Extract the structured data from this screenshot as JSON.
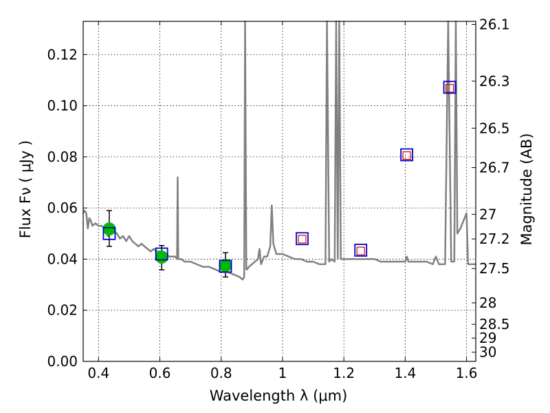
{
  "chart_data": {
    "type": "scatter",
    "xlabel": "Wavelength  λ (μm)",
    "ylabel": "Flux  Fν  ( μJy )",
    "y2label": "Magnitude (AB)",
    "xlim": [
      0.35,
      1.63
    ],
    "ylim": [
      0.0,
      0.133
    ],
    "grid": true,
    "x_ticks": [
      0.4,
      0.6,
      0.8,
      1.0,
      1.2,
      1.4,
      1.6
    ],
    "x_tick_labels": [
      "0.4",
      "0.6",
      "0.8",
      "1",
      "1.2",
      "1.4",
      "1.6"
    ],
    "y_ticks": [
      0.0,
      0.02,
      0.04,
      0.06,
      0.08,
      0.1,
      0.12
    ],
    "y_tick_labels": [
      "0.00",
      "0.02",
      "0.04",
      "0.06",
      "0.08",
      "0.10",
      "0.12"
    ],
    "mag_ticks": [
      {
        "label": "26.1",
        "flux": 0.1318
      },
      {
        "label": "26.3",
        "flux": 0.1096
      },
      {
        "label": "26.5",
        "flux": 0.0912
      },
      {
        "label": "26.7",
        "flux": 0.0758
      },
      {
        "label": "27",
        "flux": 0.0575
      },
      {
        "label": "27.2",
        "flux": 0.0479
      },
      {
        "label": "27.5",
        "flux": 0.0363
      },
      {
        "label": "28",
        "flux": 0.0229
      },
      {
        "label": "28.5",
        "flux": 0.0145
      },
      {
        "label": "29",
        "flux": 0.0091
      },
      {
        "label": "30",
        "flux": 0.0036
      }
    ],
    "series": [
      {
        "type": "line",
        "color": "#808080",
        "points": [
          [
            0.35,
            0.058
          ],
          [
            0.355,
            0.059
          ],
          [
            0.36,
            0.058
          ],
          [
            0.365,
            0.052
          ],
          [
            0.37,
            0.056
          ],
          [
            0.375,
            0.055
          ],
          [
            0.38,
            0.053
          ],
          [
            0.39,
            0.054
          ],
          [
            0.4,
            0.053
          ],
          [
            0.41,
            0.053
          ],
          [
            0.42,
            0.052
          ],
          [
            0.43,
            0.049
          ],
          [
            0.44,
            0.05
          ],
          [
            0.45,
            0.051
          ],
          [
            0.46,
            0.05
          ],
          [
            0.47,
            0.048
          ],
          [
            0.48,
            0.049
          ],
          [
            0.49,
            0.047
          ],
          [
            0.5,
            0.049
          ],
          [
            0.51,
            0.047
          ],
          [
            0.52,
            0.046
          ],
          [
            0.53,
            0.045
          ],
          [
            0.54,
            0.046
          ],
          [
            0.55,
            0.045
          ],
          [
            0.56,
            0.044
          ],
          [
            0.57,
            0.043
          ],
          [
            0.58,
            0.044
          ],
          [
            0.59,
            0.043
          ],
          [
            0.6,
            0.043
          ],
          [
            0.61,
            0.042
          ],
          [
            0.62,
            0.042
          ],
          [
            0.63,
            0.041
          ],
          [
            0.64,
            0.041
          ],
          [
            0.65,
            0.041
          ],
          [
            0.656,
            0.04
          ],
          [
            0.658,
            0.072
          ],
          [
            0.66,
            0.04
          ],
          [
            0.67,
            0.04
          ],
          [
            0.68,
            0.039
          ],
          [
            0.7,
            0.039
          ],
          [
            0.72,
            0.038
          ],
          [
            0.74,
            0.037
          ],
          [
            0.76,
            0.037
          ],
          [
            0.78,
            0.036
          ],
          [
            0.8,
            0.035
          ],
          [
            0.82,
            0.035
          ],
          [
            0.84,
            0.034
          ],
          [
            0.86,
            0.033
          ],
          [
            0.87,
            0.032
          ],
          [
            0.875,
            0.033
          ],
          [
            0.878,
            0.133
          ],
          [
            0.882,
            0.036
          ],
          [
            0.885,
            0.036
          ],
          [
            0.89,
            0.037
          ],
          [
            0.9,
            0.038
          ],
          [
            0.91,
            0.039
          ],
          [
            0.92,
            0.04
          ],
          [
            0.925,
            0.044
          ],
          [
            0.93,
            0.038
          ],
          [
            0.94,
            0.041
          ],
          [
            0.95,
            0.041
          ],
          [
            0.96,
            0.045
          ],
          [
            0.965,
            0.061
          ],
          [
            0.97,
            0.046
          ],
          [
            0.98,
            0.042
          ],
          [
            1.0,
            0.042
          ],
          [
            1.02,
            0.041
          ],
          [
            1.04,
            0.04
          ],
          [
            1.06,
            0.04
          ],
          [
            1.08,
            0.039
          ],
          [
            1.1,
            0.039
          ],
          [
            1.12,
            0.038
          ],
          [
            1.14,
            0.038
          ],
          [
            1.145,
            0.133
          ],
          [
            1.152,
            0.039
          ],
          [
            1.16,
            0.04
          ],
          [
            1.17,
            0.039
          ],
          [
            1.175,
            0.133
          ],
          [
            1.18,
            0.04
          ],
          [
            1.185,
            0.133
          ],
          [
            1.19,
            0.04
          ],
          [
            1.2,
            0.04
          ],
          [
            1.22,
            0.04
          ],
          [
            1.24,
            0.04
          ],
          [
            1.26,
            0.04
          ],
          [
            1.28,
            0.04
          ],
          [
            1.3,
            0.04
          ],
          [
            1.32,
            0.039
          ],
          [
            1.34,
            0.039
          ],
          [
            1.36,
            0.039
          ],
          [
            1.38,
            0.039
          ],
          [
            1.4,
            0.039
          ],
          [
            1.405,
            0.041
          ],
          [
            1.41,
            0.039
          ],
          [
            1.44,
            0.039
          ],
          [
            1.47,
            0.039
          ],
          [
            1.49,
            0.038
          ],
          [
            1.5,
            0.041
          ],
          [
            1.51,
            0.038
          ],
          [
            1.52,
            0.038
          ],
          [
            1.53,
            0.038
          ],
          [
            1.54,
            0.133
          ],
          [
            1.55,
            0.039
          ],
          [
            1.56,
            0.039
          ],
          [
            1.565,
            0.133
          ],
          [
            1.57,
            0.05
          ],
          [
            1.58,
            0.052
          ],
          [
            1.59,
            0.055
          ],
          [
            1.6,
            0.058
          ],
          [
            1.605,
            0.038
          ],
          [
            1.63,
            0.038
          ]
        ]
      },
      {
        "type": "errorbar",
        "marker": "circle",
        "color": "#00bb00",
        "points": [
          {
            "x": 0.435,
            "y": 0.0518,
            "yerr": [
              0.0068,
              0.0072
            ]
          },
          {
            "x": 0.606,
            "y": 0.0408,
            "yerr": [
              0.005,
              0.0045
            ]
          },
          {
            "x": 0.814,
            "y": 0.0375,
            "yerr": [
              0.0045,
              0.005
            ]
          }
        ]
      },
      {
        "type": "scatter",
        "marker": "square",
        "color": "#0000cc",
        "points": [
          [
            0.435,
            0.05
          ],
          [
            0.606,
            0.042
          ],
          [
            0.814,
            0.0372
          ],
          [
            1.064,
            0.048
          ],
          [
            1.255,
            0.0435
          ],
          [
            1.405,
            0.0808
          ],
          [
            1.545,
            0.1072
          ]
        ]
      },
      {
        "type": "scatter",
        "marker": "square",
        "color": "#dd0000",
        "points": [
          [
            1.064,
            0.0478
          ],
          [
            1.255,
            0.0432
          ],
          [
            1.405,
            0.0805
          ],
          [
            1.545,
            0.1068
          ]
        ]
      }
    ]
  }
}
